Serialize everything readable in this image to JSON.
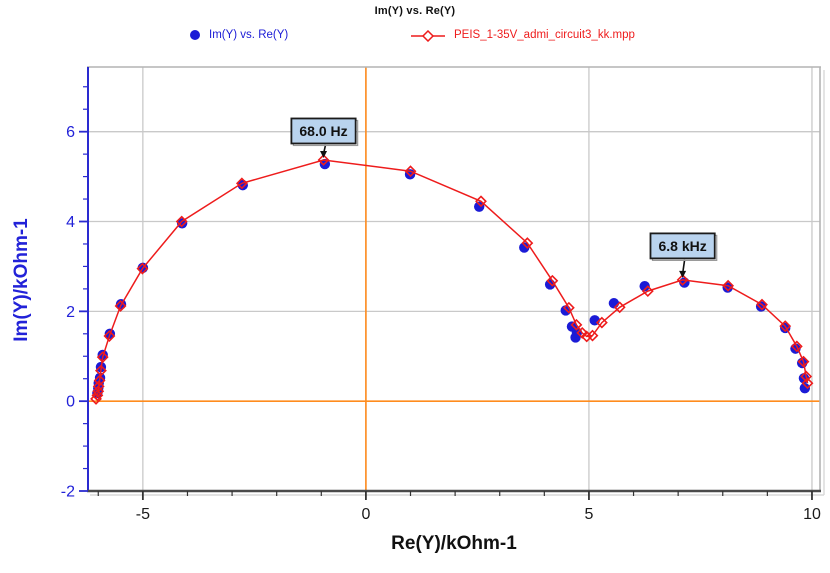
{
  "title": "Im(Y) vs. Re(Y)",
  "legend": {
    "items": [
      {
        "label": "Im(Y) vs. Re(Y)",
        "color": "#1b1bd6",
        "marker": "filled-circle"
      },
      {
        "label": "PEIS_1-35V_admi_circuit3_kk.mpp",
        "color": "#ee1c1c",
        "marker": "line-open-diamond"
      }
    ]
  },
  "axes": {
    "x": {
      "title": "Re(Y)/kOhm-1",
      "major_ticks": [
        -5,
        0,
        5,
        10
      ],
      "minor_step": 1,
      "tick_color": "#1a1a1a",
      "axis_color": "#4a4a4a"
    },
    "y": {
      "title": "Im(Y)/kOhm-1",
      "major_ticks": [
        -2,
        0,
        2,
        4,
        6
      ],
      "minor_step": 0.5,
      "tick_color": "#2222d8",
      "axis_color": "#2a2ad0"
    }
  },
  "colors": {
    "grid": "#c9c9c9",
    "crosshair": "#ff8c1e",
    "frame_light": "#b4b4b4",
    "frame_shadow": "#d9d9d9",
    "annotation_fill": "#b9d3ee",
    "annotation_border": "#1b1b1b",
    "blue_series": "#1b1bd6",
    "red_series": "#ee1c1c"
  },
  "chart_data": {
    "type": "scatter",
    "title": "Im(Y) vs. Re(Y)",
    "xlabel": "Re(Y)/kOhm-1",
    "ylabel": "Im(Y)/kOhm-1",
    "xlim": [
      -6.23,
      10.18
    ],
    "ylim": [
      -2.0,
      7.44
    ],
    "grid": {
      "x_lines": [
        -5,
        0,
        5,
        10
      ],
      "y_lines": [
        0,
        2,
        4,
        6
      ]
    },
    "crosshair": {
      "x": 0,
      "y": 0
    },
    "legend_position": "top",
    "series": [
      {
        "name": "Im(Y) vs. Re(Y)",
        "style": "scatter",
        "marker": "filled-circle",
        "color": "#1b1bd6",
        "points": [
          [
            -6.02,
            0.18
          ],
          [
            -6.0,
            0.29
          ],
          [
            -5.99,
            0.4
          ],
          [
            -5.96,
            0.52
          ],
          [
            -5.94,
            0.76
          ],
          [
            -5.9,
            1.03
          ],
          [
            -5.74,
            1.5
          ],
          [
            -5.49,
            2.16
          ],
          [
            -5.0,
            2.97
          ],
          [
            -4.12,
            3.96
          ],
          [
            -2.76,
            4.81
          ],
          [
            -0.92,
            5.28
          ],
          [
            0.99,
            5.05
          ],
          [
            2.54,
            4.33
          ],
          [
            3.55,
            3.42
          ],
          [
            4.13,
            2.6
          ],
          [
            4.48,
            2.02
          ],
          [
            4.62,
            1.66
          ],
          [
            4.7,
            1.42
          ],
          [
            4.73,
            1.53
          ],
          [
            5.13,
            1.8
          ],
          [
            5.56,
            2.18
          ],
          [
            6.25,
            2.56
          ],
          [
            7.14,
            2.64
          ],
          [
            8.11,
            2.53
          ],
          [
            8.86,
            2.11
          ],
          [
            9.4,
            1.63
          ],
          [
            9.63,
            1.17
          ],
          [
            9.78,
            0.85
          ],
          [
            9.82,
            0.51
          ],
          [
            9.84,
            0.29
          ]
        ]
      },
      {
        "name": "PEIS_1-35V_admi_circuit3_kk.mpp",
        "style": "line-scatter",
        "marker": "open-diamond",
        "color": "#ee1c1c",
        "points": [
          [
            -6.05,
            0.05
          ],
          [
            -6.02,
            0.13
          ],
          [
            -6.0,
            0.22
          ],
          [
            -5.99,
            0.33
          ],
          [
            -5.97,
            0.46
          ],
          [
            -5.94,
            0.68
          ],
          [
            -5.9,
            0.98
          ],
          [
            -5.75,
            1.45
          ],
          [
            -5.5,
            2.12
          ],
          [
            -5.01,
            2.95
          ],
          [
            -4.13,
            4.0
          ],
          [
            -2.78,
            4.85
          ],
          [
            -0.95,
            5.37
          ],
          [
            1.0,
            5.12
          ],
          [
            2.58,
            4.45
          ],
          [
            3.62,
            3.52
          ],
          [
            4.18,
            2.68
          ],
          [
            4.55,
            2.08
          ],
          [
            4.72,
            1.7
          ],
          [
            4.85,
            1.52
          ],
          [
            4.95,
            1.44
          ],
          [
            5.08,
            1.46
          ],
          [
            5.29,
            1.75
          ],
          [
            5.69,
            2.09
          ],
          [
            6.32,
            2.45
          ],
          [
            7.1,
            2.7
          ],
          [
            8.12,
            2.57
          ],
          [
            8.88,
            2.15
          ],
          [
            9.4,
            1.67
          ],
          [
            9.66,
            1.22
          ],
          [
            9.81,
            0.88
          ],
          [
            9.87,
            0.55
          ],
          [
            9.9,
            0.4
          ]
        ]
      }
    ],
    "annotations": [
      {
        "label": "68.0 Hz",
        "anchor_x": -0.95,
        "anchor_y": 5.37,
        "arrow_len": 15
      },
      {
        "label": "6.8 kHz",
        "anchor_x": 7.1,
        "anchor_y": 2.7,
        "arrow_len": 20
      }
    ]
  }
}
